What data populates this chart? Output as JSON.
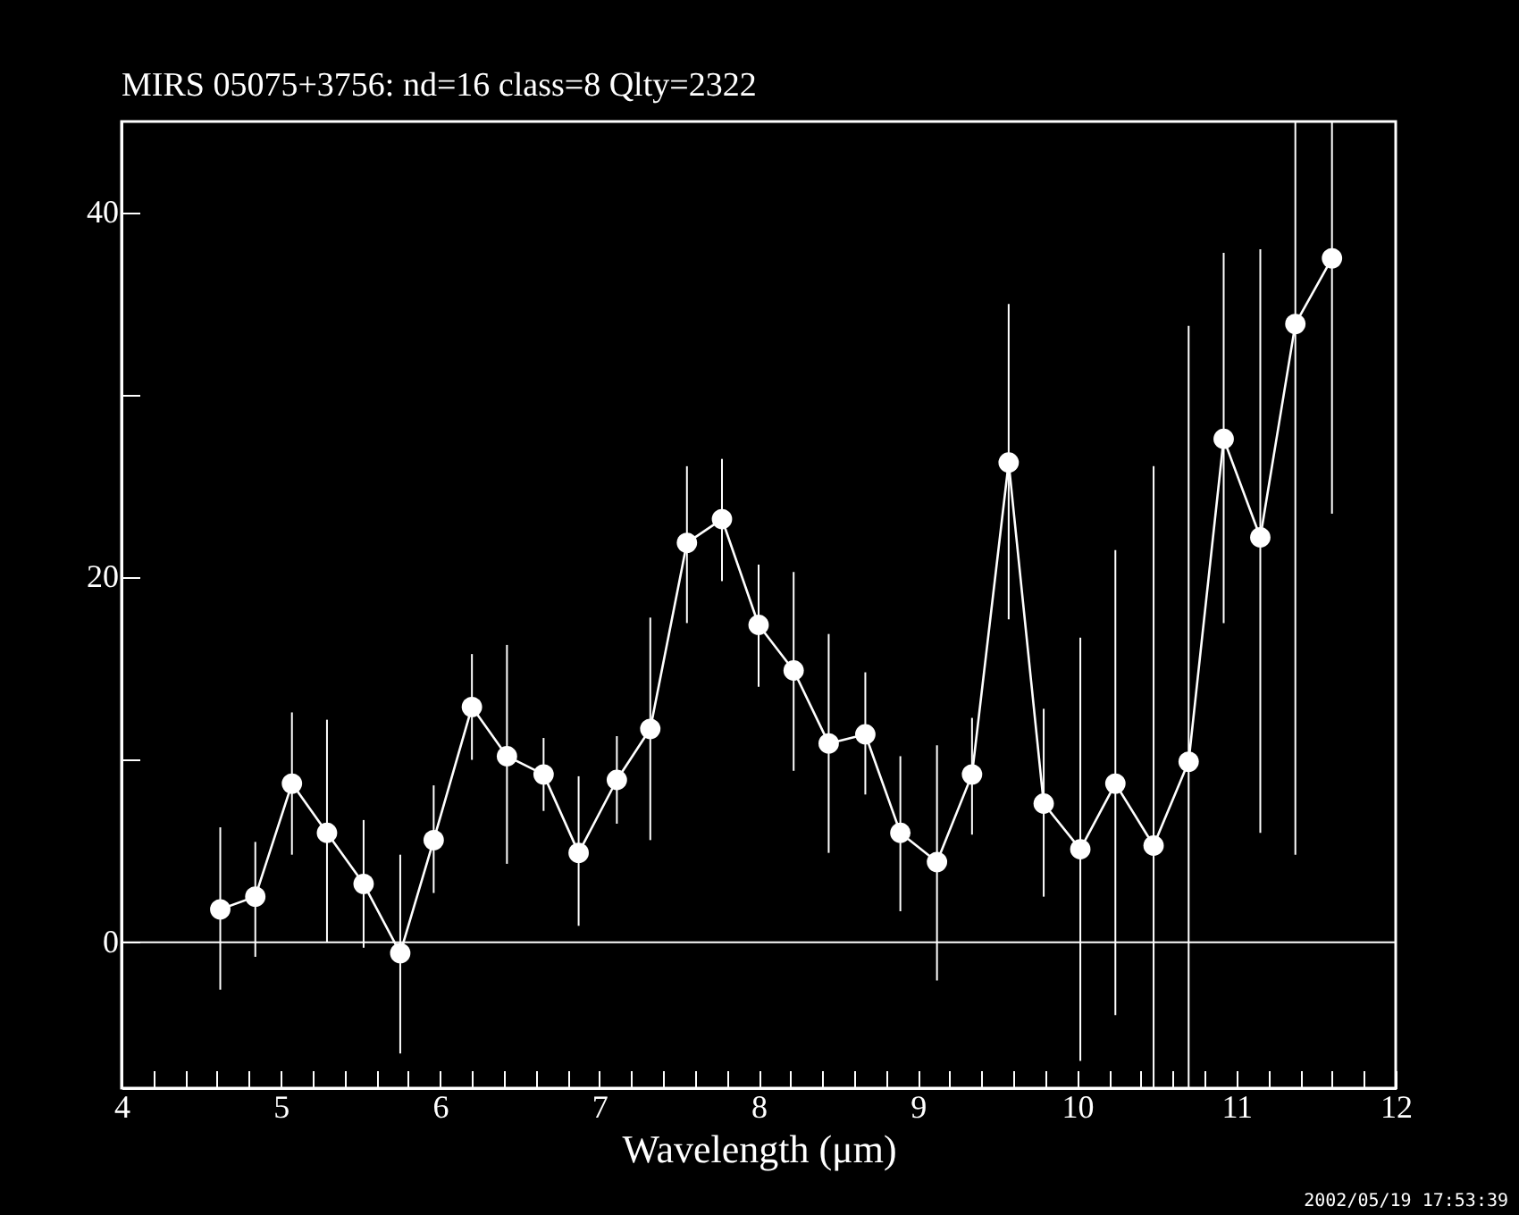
{
  "chart_data": {
    "type": "line",
    "title": "MIRS 05075+3756:    nd=16    class=8    Qlty=2322",
    "xlabel": "Wavelength (μm)",
    "annotations": [
      "2002/05/19 17:53:39"
    ],
    "x": [
      4.62,
      4.84,
      5.07,
      5.29,
      5.52,
      5.75,
      5.96,
      6.2,
      6.42,
      6.65,
      6.87,
      7.11,
      7.32,
      7.55,
      7.77,
      8.0,
      8.22,
      8.44,
      8.67,
      8.89,
      9.12,
      9.34,
      9.57,
      9.79,
      10.02,
      10.24,
      10.48,
      10.7,
      10.92,
      11.15,
      11.37,
      11.6
    ],
    "series": [
      {
        "color": "#ffffff",
        "values": [
          1.8,
          2.5,
          8.7,
          6.0,
          3.2,
          -0.6,
          5.6,
          12.9,
          10.2,
          9.2,
          4.9,
          8.9,
          11.7,
          21.9,
          23.2,
          17.4,
          14.9,
          10.9,
          11.4,
          6.0,
          4.4,
          9.2,
          26.3,
          7.6,
          5.1,
          8.7,
          5.3,
          9.9,
          27.6,
          22.2,
          33.9,
          37.5
        ],
        "errors": [
          [
            -2.6,
            6.3
          ],
          [
            -0.8,
            5.5
          ],
          [
            4.8,
            12.6
          ],
          [
            0,
            12.2
          ],
          [
            -0.3,
            6.7
          ],
          [
            -6.1,
            4.8
          ],
          [
            2.7,
            8.6
          ],
          [
            10.0,
            15.8
          ],
          [
            4.3,
            16.3
          ],
          [
            7.2,
            11.2
          ],
          [
            0.9,
            9.1
          ],
          [
            6.5,
            11.3
          ],
          [
            5.6,
            17.8
          ],
          [
            17.5,
            26.1
          ],
          [
            19.8,
            26.5
          ],
          [
            14.0,
            20.7
          ],
          [
            9.4,
            20.3
          ],
          [
            4.9,
            16.9
          ],
          [
            8.1,
            14.8
          ],
          [
            1.7,
            10.2
          ],
          [
            -2.1,
            10.8
          ],
          [
            5.9,
            12.3
          ],
          [
            17.7,
            35.0
          ],
          [
            2.5,
            12.8
          ],
          [
            -6.5,
            16.7
          ],
          [
            -4.0,
            21.5
          ],
          [
            -8,
            26.1
          ],
          [
            -8,
            33.8
          ],
          [
            17.5,
            37.8
          ],
          [
            6.0,
            38.0
          ],
          [
            4.8,
            45
          ],
          [
            23.5,
            45
          ]
        ]
      }
    ],
    "marker": "circle",
    "xlim": [
      4,
      12
    ],
    "xticks": [
      4,
      {
        "value": 4.2,
        "label": null
      },
      {
        "value": 4.4,
        "label": null
      },
      {
        "value": 4.6,
        "label": null
      },
      {
        "value": 4.8,
        "label": null
      },
      5,
      {
        "value": 5.2,
        "label": null
      },
      {
        "value": 5.4,
        "label": null
      },
      {
        "value": 5.6,
        "label": null
      },
      {
        "value": 5.8,
        "label": null
      },
      6,
      {
        "value": 6.2,
        "label": null
      },
      {
        "value": 6.4,
        "label": null
      },
      {
        "value": 6.6,
        "label": null
      },
      {
        "value": 6.8,
        "label": null
      },
      7,
      {
        "value": 7.2,
        "label": null
      },
      {
        "value": 7.4,
        "label": null
      },
      {
        "value": 7.6,
        "label": null
      },
      {
        "value": 7.8,
        "label": null
      },
      8,
      {
        "value": 8.2,
        "label": null
      },
      {
        "value": 8.4,
        "label": null
      },
      {
        "value": 8.6,
        "label": null
      },
      {
        "value": 8.8,
        "label": null
      },
      9,
      {
        "value": 9.2,
        "label": null
      },
      {
        "value": 9.4,
        "label": null
      },
      {
        "value": 9.6,
        "label": null
      },
      {
        "value": 9.8,
        "label": null
      },
      10,
      {
        "value": 10.2,
        "label": null
      },
      {
        "value": 10.4,
        "label": null
      },
      {
        "value": 10.6,
        "label": null
      },
      {
        "value": 10.8,
        "label": null
      },
      11,
      {
        "value": 11.2,
        "label": null
      },
      {
        "value": 11.4,
        "label": null
      },
      {
        "value": 11.6,
        "label": null
      },
      {
        "value": 11.8,
        "label": null
      },
      12
    ],
    "ylim": [
      -8,
      45
    ],
    "yticks": [
      0,
      {
        "value": 10,
        "label": null
      },
      20,
      {
        "value": 30,
        "label": null
      },
      40
    ],
    "ref_lines": [
      {
        "axis": "y",
        "value": 0,
        "color": "#ffffff"
      }
    ],
    "grid": false
  }
}
